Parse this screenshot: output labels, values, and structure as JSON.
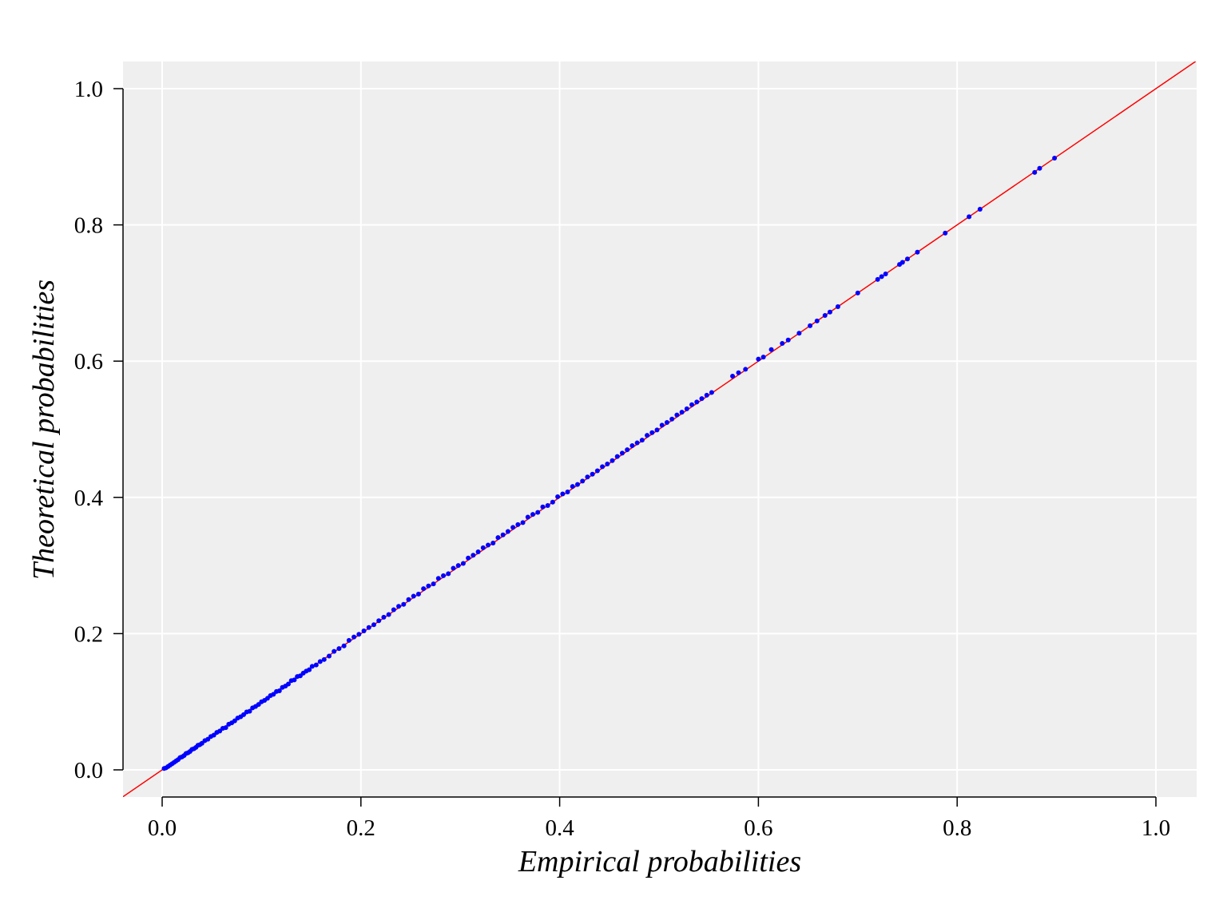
{
  "chart_data": {
    "type": "scatter",
    "title": "",
    "xlabel": "Empirical probabilities",
    "ylabel": "Theoretical probabilities",
    "xlim": [
      -0.04,
      1.04
    ],
    "ylim": [
      -0.04,
      1.04
    ],
    "xticks": [
      "0.0",
      "0.2",
      "0.4",
      "0.6",
      "0.8",
      "1.0"
    ],
    "yticks": [
      "0.0",
      "0.2",
      "0.4",
      "0.6",
      "0.8",
      "1.0"
    ],
    "grid": true,
    "background_color": "#efefef",
    "point_color": "#0000ff",
    "reference_line": {
      "slope": 1,
      "intercept": 0,
      "color": "#ff0000"
    },
    "series": [
      {
        "points": [
          [
            0.002,
            0.002
          ],
          [
            0.004,
            0.003
          ],
          [
            0.006,
            0.005
          ],
          [
            0.008,
            0.007
          ],
          [
            0.01,
            0.009
          ],
          [
            0.012,
            0.011
          ],
          [
            0.014,
            0.013
          ],
          [
            0.016,
            0.015
          ],
          [
            0.018,
            0.018
          ],
          [
            0.02,
            0.019
          ],
          [
            0.022,
            0.021
          ],
          [
            0.024,
            0.024
          ],
          [
            0.026,
            0.025
          ],
          [
            0.028,
            0.027
          ],
          [
            0.03,
            0.03
          ],
          [
            0.032,
            0.031
          ],
          [
            0.034,
            0.033
          ],
          [
            0.036,
            0.036
          ],
          [
            0.038,
            0.037
          ],
          [
            0.04,
            0.039
          ],
          [
            0.043,
            0.043
          ],
          [
            0.046,
            0.045
          ],
          [
            0.049,
            0.049
          ],
          [
            0.052,
            0.051
          ],
          [
            0.055,
            0.055
          ],
          [
            0.058,
            0.057
          ],
          [
            0.061,
            0.061
          ],
          [
            0.064,
            0.062
          ],
          [
            0.067,
            0.067
          ],
          [
            0.07,
            0.069
          ],
          [
            0.073,
            0.072
          ],
          [
            0.076,
            0.076
          ],
          [
            0.079,
            0.078
          ],
          [
            0.082,
            0.081
          ],
          [
            0.085,
            0.085
          ],
          [
            0.088,
            0.086
          ],
          [
            0.091,
            0.091
          ],
          [
            0.094,
            0.093
          ],
          [
            0.097,
            0.096
          ],
          [
            0.1,
            0.1
          ],
          [
            0.103,
            0.102
          ],
          [
            0.106,
            0.105
          ],
          [
            0.109,
            0.109
          ],
          [
            0.112,
            0.111
          ],
          [
            0.115,
            0.115
          ],
          [
            0.118,
            0.116
          ],
          [
            0.121,
            0.121
          ],
          [
            0.124,
            0.123
          ],
          [
            0.127,
            0.126
          ],
          [
            0.13,
            0.131
          ],
          [
            0.133,
            0.132
          ],
          [
            0.136,
            0.137
          ],
          [
            0.139,
            0.138
          ],
          [
            0.142,
            0.142
          ],
          [
            0.145,
            0.145
          ],
          [
            0.148,
            0.147
          ],
          [
            0.151,
            0.152
          ],
          [
            0.155,
            0.154
          ],
          [
            0.159,
            0.159
          ],
          [
            0.163,
            0.162
          ],
          [
            0.168,
            0.167
          ],
          [
            0.173,
            0.174
          ],
          [
            0.178,
            0.178
          ],
          [
            0.183,
            0.182
          ],
          [
            0.188,
            0.19
          ],
          [
            0.193,
            0.195
          ],
          [
            0.198,
            0.199
          ],
          [
            0.203,
            0.204
          ],
          [
            0.208,
            0.209
          ],
          [
            0.213,
            0.213
          ],
          [
            0.218,
            0.219
          ],
          [
            0.223,
            0.224
          ],
          [
            0.228,
            0.228
          ],
          [
            0.233,
            0.235
          ],
          [
            0.238,
            0.24
          ],
          [
            0.243,
            0.243
          ],
          [
            0.248,
            0.25
          ],
          [
            0.253,
            0.255
          ],
          [
            0.258,
            0.258
          ],
          [
            0.263,
            0.266
          ],
          [
            0.268,
            0.27
          ],
          [
            0.273,
            0.273
          ],
          [
            0.278,
            0.281
          ],
          [
            0.283,
            0.285
          ],
          [
            0.288,
            0.288
          ],
          [
            0.293,
            0.296
          ],
          [
            0.298,
            0.3
          ],
          [
            0.303,
            0.303
          ],
          [
            0.308,
            0.311
          ],
          [
            0.313,
            0.315
          ],
          [
            0.318,
            0.32
          ],
          [
            0.323,
            0.326
          ],
          [
            0.328,
            0.33
          ],
          [
            0.333,
            0.333
          ],
          [
            0.338,
            0.341
          ],
          [
            0.343,
            0.345
          ],
          [
            0.348,
            0.35
          ],
          [
            0.353,
            0.356
          ],
          [
            0.358,
            0.36
          ],
          [
            0.363,
            0.363
          ],
          [
            0.368,
            0.371
          ],
          [
            0.373,
            0.375
          ],
          [
            0.378,
            0.378
          ],
          [
            0.383,
            0.386
          ],
          [
            0.388,
            0.388
          ],
          [
            0.393,
            0.393
          ],
          [
            0.398,
            0.401
          ],
          [
            0.403,
            0.405
          ],
          [
            0.408,
            0.408
          ],
          [
            0.413,
            0.416
          ],
          [
            0.418,
            0.419
          ],
          [
            0.423,
            0.424
          ],
          [
            0.428,
            0.43
          ],
          [
            0.433,
            0.434
          ],
          [
            0.438,
            0.439
          ],
          [
            0.443,
            0.445
          ],
          [
            0.448,
            0.449
          ],
          [
            0.453,
            0.454
          ],
          [
            0.458,
            0.46
          ],
          [
            0.463,
            0.465
          ],
          [
            0.468,
            0.47
          ],
          [
            0.473,
            0.476
          ],
          [
            0.478,
            0.48
          ],
          [
            0.483,
            0.484
          ],
          [
            0.488,
            0.491
          ],
          [
            0.493,
            0.495
          ],
          [
            0.498,
            0.499
          ],
          [
            0.503,
            0.506
          ],
          [
            0.508,
            0.51
          ],
          [
            0.513,
            0.515
          ],
          [
            0.518,
            0.521
          ],
          [
            0.523,
            0.525
          ],
          [
            0.528,
            0.53
          ],
          [
            0.533,
            0.536
          ],
          [
            0.538,
            0.54
          ],
          [
            0.543,
            0.545
          ],
          [
            0.548,
            0.55
          ],
          [
            0.553,
            0.554
          ],
          [
            0.574,
            0.578
          ],
          [
            0.58,
            0.583
          ],
          [
            0.587,
            0.588
          ],
          [
            0.6,
            0.603
          ],
          [
            0.605,
            0.606
          ],
          [
            0.613,
            0.617
          ],
          [
            0.624,
            0.626
          ],
          [
            0.63,
            0.631
          ],
          [
            0.641,
            0.641
          ],
          [
            0.652,
            0.652
          ],
          [
            0.659,
            0.659
          ],
          [
            0.667,
            0.667
          ],
          [
            0.672,
            0.672
          ],
          [
            0.68,
            0.68
          ],
          [
            0.7,
            0.7
          ],
          [
            0.72,
            0.72
          ],
          [
            0.724,
            0.724
          ],
          [
            0.728,
            0.728
          ],
          [
            0.742,
            0.742
          ],
          [
            0.745,
            0.745
          ],
          [
            0.75,
            0.75
          ],
          [
            0.76,
            0.76
          ],
          [
            0.788,
            0.788
          ],
          [
            0.812,
            0.812
          ],
          [
            0.823,
            0.823
          ],
          [
            0.878,
            0.877
          ],
          [
            0.883,
            0.883
          ],
          [
            0.898,
            0.898
          ]
        ]
      }
    ]
  }
}
